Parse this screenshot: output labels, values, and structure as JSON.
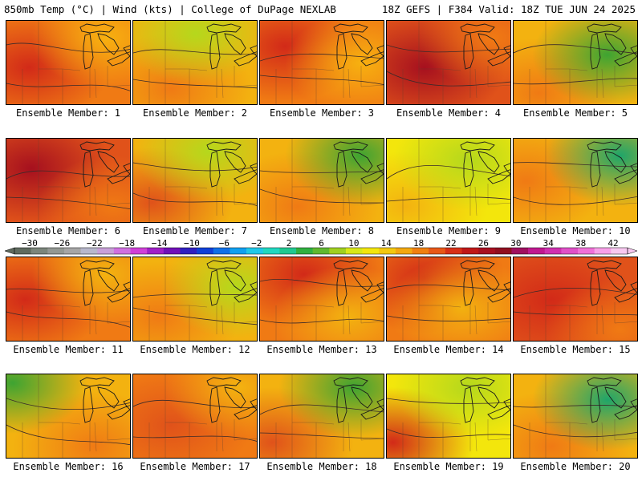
{
  "header": {
    "left": "850mb Temp (°C) | Wind (kts) | College of DuPage NEXLAB",
    "right": "18Z GEFS | F384 Valid: 18Z TUE JUN 24 2025"
  },
  "panels": [
    {
      "label": "Ensemble Member: 1",
      "base": "#f07a14",
      "hot": "#d22a18",
      "hotX": 0.18,
      "hotY": 0.55,
      "cool": "#f7b010",
      "coolX": 0.8,
      "coolY": 0.2
    },
    {
      "label": "Ensemble Member: 2",
      "base": "#f3b210",
      "hot": "#f07a14",
      "hotX": 0.3,
      "hotY": 0.8,
      "cool": "#b5d81c",
      "coolX": 0.5,
      "coolY": 0.15
    },
    {
      "label": "Ensemble Member: 3",
      "base": "#f07a14",
      "hot": "#d22a18",
      "hotX": 0.2,
      "hotY": 0.3,
      "cool": "#f7b010",
      "coolX": 0.8,
      "coolY": 0.5
    },
    {
      "label": "Ensemble Member: 4",
      "base": "#e0521a",
      "hot": "#a6101e",
      "hotX": 0.3,
      "hotY": 0.55,
      "cool": "#f07a14",
      "coolX": 0.85,
      "coolY": 0.2
    },
    {
      "label": "Ensemble Member: 5",
      "base": "#f3b210",
      "hot": "#f07a14",
      "hotX": 0.2,
      "hotY": 0.85,
      "cool": "#3ea432",
      "coolX": 0.75,
      "coolY": 0.4
    },
    {
      "label": "Ensemble Member: 6",
      "base": "#e0521a",
      "hot": "#a6101e",
      "hotX": 0.2,
      "hotY": 0.35,
      "cool": "#f07a14",
      "coolX": 0.85,
      "coolY": 0.8
    },
    {
      "label": "Ensemble Member: 7",
      "base": "#f3b210",
      "hot": "#e0521a",
      "hotX": 0.15,
      "hotY": 0.75,
      "cool": "#b5d81c",
      "coolX": 0.6,
      "coolY": 0.15
    },
    {
      "label": "Ensemble Member: 8",
      "base": "#f3b210",
      "hot": "#f07a14",
      "hotX": 0.3,
      "hotY": 0.8,
      "cool": "#3ea432",
      "coolX": 0.8,
      "coolY": 0.2
    },
    {
      "label": "Ensemble Member: 9",
      "base": "#f3e60c",
      "hot": "#f3b210",
      "hotX": 0.15,
      "hotY": 0.8,
      "cool": "#b5d81c",
      "coolX": 0.65,
      "coolY": 0.25
    },
    {
      "label": "Ensemble Member: 10",
      "base": "#f3b210",
      "hot": "#f07a14",
      "hotX": 0.1,
      "hotY": 0.5,
      "cool": "#1fa56a",
      "coolX": 0.85,
      "coolY": 0.2
    },
    {
      "label": "Ensemble Member: 11",
      "base": "#f07a14",
      "hot": "#d22a18",
      "hotX": 0.15,
      "hotY": 0.5,
      "cool": "#f3b210",
      "coolX": 0.8,
      "coolY": 0.2
    },
    {
      "label": "Ensemble Member: 12",
      "base": "#f3b210",
      "hot": "#f07a14",
      "hotX": 0.2,
      "hotY": 0.7,
      "cool": "#b5d81c",
      "coolX": 0.82,
      "coolY": 0.35
    },
    {
      "label": "Ensemble Member: 13",
      "base": "#f07a14",
      "hot": "#d22a18",
      "hotX": 0.35,
      "hotY": 0.2,
      "cool": "#f3b210",
      "coolX": 0.7,
      "coolY": 0.7
    },
    {
      "label": "Ensemble Member: 14",
      "base": "#f07a14",
      "hot": "#d22a18",
      "hotX": 0.3,
      "hotY": 0.25,
      "cool": "#f3b210",
      "coolX": 0.6,
      "coolY": 0.6
    },
    {
      "label": "Ensemble Member: 15",
      "base": "#e0521a",
      "hot": "#d22a18",
      "hotX": 0.3,
      "hotY": 0.5,
      "cool": "#f07a14",
      "coolX": 0.85,
      "coolY": 0.85
    },
    {
      "label": "Ensemble Member: 16",
      "base": "#f3b210",
      "hot": "#f07a14",
      "hotX": 0.7,
      "hotY": 0.85,
      "cool": "#3ea432",
      "coolX": 0.05,
      "coolY": 0.1
    },
    {
      "label": "Ensemble Member: 17",
      "base": "#f07a14",
      "hot": "#e0521a",
      "hotX": 0.3,
      "hotY": 0.6,
      "cool": "#f3b210",
      "coolX": 0.85,
      "coolY": 0.15
    },
    {
      "label": "Ensemble Member: 18",
      "base": "#f3b210",
      "hot": "#e0521a",
      "hotX": 0.1,
      "hotY": 0.8,
      "cool": "#3ea432",
      "coolX": 0.75,
      "coolY": 0.15
    },
    {
      "label": "Ensemble Member: 19",
      "base": "#f3e60c",
      "hot": "#d22a18",
      "hotX": 0.05,
      "hotY": 0.8,
      "cool": "#b5d81c",
      "coolX": 0.65,
      "coolY": 0.15
    },
    {
      "label": "Ensemble Member: 20",
      "base": "#f3b210",
      "hot": "#f07a14",
      "hotX": 0.3,
      "hotY": 0.85,
      "cool": "#1fa56a",
      "coolX": 0.75,
      "coolY": 0.3
    }
  ],
  "colorbar": {
    "labels": [
      "−30",
      "−26",
      "−22",
      "−18",
      "−14",
      "−10",
      "−6",
      "−2",
      "2",
      "6",
      "10",
      "14",
      "18",
      "22",
      "26",
      "30",
      "34",
      "38",
      "42"
    ],
    "colors": [
      "#5f6b5f",
      "#7b857b",
      "#939893",
      "#a6a6a6",
      "#b8b8cc",
      "#c8a0d8",
      "#d070e0",
      "#d040d8",
      "#a020c8",
      "#7010b8",
      "#3020c0",
      "#1040d8",
      "#1070e8",
      "#10a0f0",
      "#20c8e8",
      "#20d8c0",
      "#20c890",
      "#30b040",
      "#60b830",
      "#a0d020",
      "#d8e818",
      "#f3e60c",
      "#f3c810",
      "#f3a810",
      "#f08010",
      "#e85818",
      "#d83018",
      "#c01818",
      "#a81020",
      "#901020",
      "#a01060",
      "#c01890",
      "#d030b0",
      "#e050c8",
      "#f070d8",
      "#f8a0e8",
      "#f8c8f0"
    ]
  }
}
